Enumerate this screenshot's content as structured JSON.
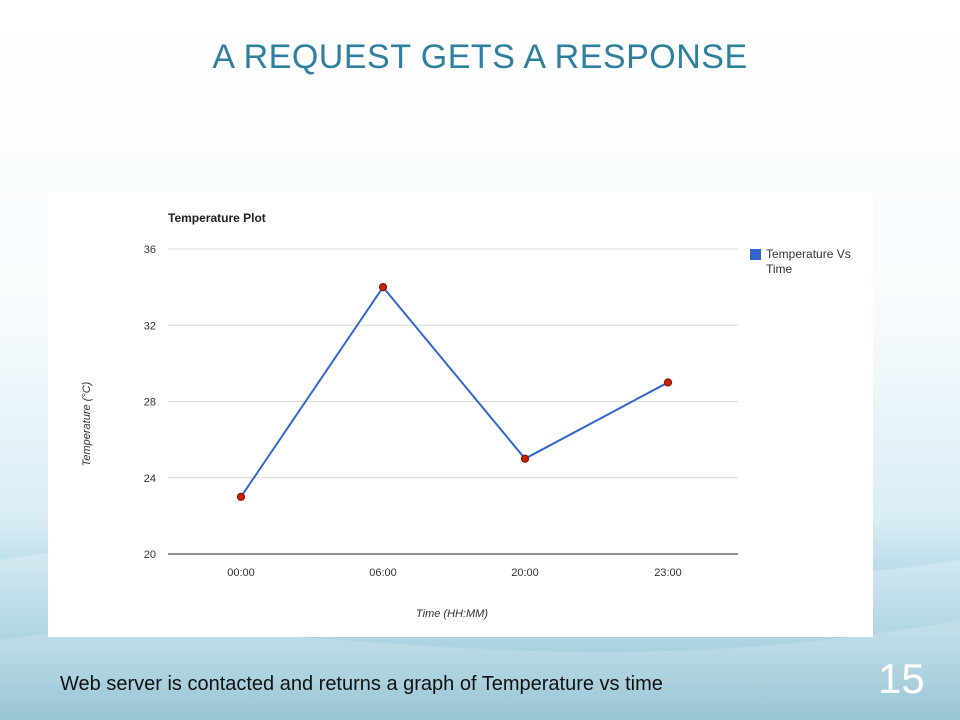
{
  "slide": {
    "title": "A REQUEST GETS A RESPONSE",
    "caption": "Web server is contacted and returns a graph of Temperature vs time",
    "page_number": "15"
  },
  "colors": {
    "title": "#2f7f9f",
    "line": "#3366cc",
    "marker_fill": "#cc2200",
    "marker_edge": "#8a1400",
    "grid": "#d9d9d9",
    "legend_swatch": "#3366cc"
  },
  "chart_data": {
    "type": "line",
    "title": "Temperature Plot",
    "xlabel": "Time (HH:MM)",
    "ylabel": "Temperature (°C)",
    "categories": [
      "00:00",
      "06:00",
      "20:00",
      "23:00"
    ],
    "series": [
      {
        "name": "Temperature Vs Time",
        "values": [
          23,
          34,
          25,
          29
        ]
      }
    ],
    "ylim": [
      20,
      36
    ],
    "yticks": [
      20,
      24,
      28,
      32,
      36
    ],
    "grid": true,
    "legend_position": "right"
  }
}
